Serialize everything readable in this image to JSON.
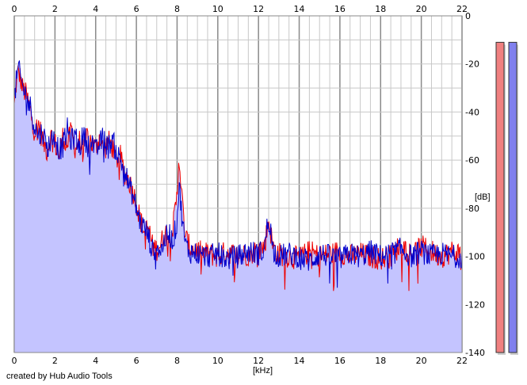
{
  "chart_data": {
    "type": "line",
    "title": "",
    "xlabel": "[kHz]",
    "ylabel": "[dB]",
    "xlim": [
      0,
      22
    ],
    "ylim": [
      -140,
      0
    ],
    "x_ticks": [
      "0",
      "2",
      "4",
      "6",
      "8",
      "10",
      "12",
      "14",
      "16",
      "18",
      "20",
      "22"
    ],
    "y_ticks": [
      "0",
      "-20",
      "-40",
      "-60",
      "-80",
      "-100",
      "-120",
      "-140"
    ],
    "grid": true,
    "footer": "created by Hub Audio Tools",
    "colors": {
      "fill": "#c4c4ff",
      "red": "#ee0000",
      "blue": "#0000cc",
      "grid": "#c8c8c8",
      "major_grid": "#8a8a8a"
    },
    "series": [
      {
        "color": "red",
        "x": [
          0,
          0.1,
          0.2,
          0.3,
          0.4,
          0.6,
          0.8,
          1.0,
          1.2,
          1.4,
          1.6,
          1.8,
          2.0,
          2.2,
          2.4,
          2.6,
          2.8,
          3.0,
          3.2,
          3.4,
          3.6,
          3.8,
          4.0,
          4.2,
          4.4,
          4.6,
          4.8,
          5.0,
          5.2,
          5.4,
          5.6,
          5.8,
          6.0,
          6.2,
          6.4,
          6.6,
          6.8,
          7.0,
          7.2,
          7.4,
          7.6,
          7.8,
          8.0,
          8.1,
          8.2,
          8.4,
          8.6,
          9.0,
          9.5,
          10.0,
          10.5,
          11.0,
          11.5,
          12.0,
          12.3,
          12.5,
          12.7,
          13.0,
          13.5,
          14.0,
          14.5,
          15.0,
          15.5,
          16.0,
          16.5,
          17.0,
          17.5,
          18.0,
          18.5,
          19.0,
          19.5,
          20.0,
          20.5,
          21.0,
          21.5,
          22.0
        ],
        "y": [
          -38,
          -28,
          -23,
          -26,
          -30,
          -33,
          -40,
          -48,
          -45,
          -52,
          -56,
          -50,
          -53,
          -58,
          -50,
          -54,
          -48,
          -55,
          -52,
          -57,
          -49,
          -53,
          -55,
          -50,
          -57,
          -52,
          -54,
          -60,
          -58,
          -65,
          -68,
          -72,
          -78,
          -85,
          -90,
          -88,
          -96,
          -97,
          -95,
          -90,
          -92,
          -88,
          -75,
          -57,
          -72,
          -92,
          -96,
          -98,
          -99,
          -100,
          -98,
          -100,
          -99,
          -97,
          -96,
          -84,
          -96,
          -99,
          -100,
          -101,
          -98,
          -100,
          -99,
          -98,
          -100,
          -99,
          -100,
          -101,
          -100,
          -95,
          -99,
          -96,
          -98,
          -100,
          -98,
          -99
        ]
      },
      {
        "color": "blue",
        "x": [
          0,
          0.1,
          0.2,
          0.3,
          0.4,
          0.6,
          0.8,
          1.0,
          1.2,
          1.4,
          1.6,
          1.8,
          2.0,
          2.2,
          2.4,
          2.6,
          2.8,
          3.0,
          3.2,
          3.4,
          3.6,
          3.8,
          4.0,
          4.2,
          4.4,
          4.6,
          4.8,
          5.0,
          5.2,
          5.4,
          5.6,
          5.8,
          6.0,
          6.2,
          6.4,
          6.6,
          6.8,
          7.0,
          7.2,
          7.4,
          7.6,
          7.8,
          8.0,
          8.1,
          8.2,
          8.4,
          8.6,
          9.0,
          9.5,
          10.0,
          10.5,
          11.0,
          11.5,
          12.0,
          12.3,
          12.5,
          12.7,
          13.0,
          13.5,
          14.0,
          14.5,
          15.0,
          15.5,
          16.0,
          16.5,
          17.0,
          17.5,
          18.0,
          18.5,
          19.0,
          19.5,
          20.0,
          20.5,
          21.0,
          21.5,
          22.0
        ],
        "y": [
          -36,
          -27,
          -22,
          -25,
          -29,
          -34,
          -38,
          -46,
          -50,
          -48,
          -55,
          -52,
          -50,
          -56,
          -54,
          -47,
          -52,
          -50,
          -55,
          -49,
          -54,
          -51,
          -57,
          -53,
          -50,
          -55,
          -51,
          -56,
          -60,
          -63,
          -70,
          -74,
          -80,
          -86,
          -88,
          -92,
          -98,
          -95,
          -98,
          -93,
          -90,
          -94,
          -85,
          -70,
          -80,
          -95,
          -98,
          -99,
          -100,
          -99,
          -101,
          -100,
          -98,
          -99,
          -97,
          -82,
          -97,
          -100,
          -99,
          -100,
          -102,
          -99,
          -100,
          -101,
          -99,
          -100,
          -98,
          -100,
          -99,
          -97,
          -100,
          -98,
          -100,
          -99,
          -100,
          -100
        ]
      }
    ],
    "level_meters": [
      {
        "color": "red",
        "value_db": -11
      },
      {
        "color": "blue",
        "value_db": -11
      }
    ]
  }
}
